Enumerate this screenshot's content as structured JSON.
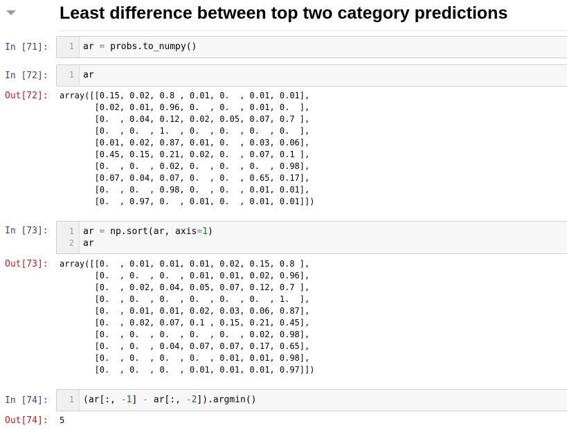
{
  "heading": "Least difference between top two category predictions",
  "cells": [
    {
      "in_prompt": "In [71]:",
      "lines": [
        {
          "no": "1",
          "text": "ar = probs.to_numpy()"
        }
      ]
    },
    {
      "in_prompt": "In [72]:",
      "lines": [
        {
          "no": "1",
          "text": "ar"
        }
      ],
      "out_prompt": "Out[72]:",
      "output": [
        "array([[0.15, 0.02, 0.8 , 0.01, 0.  , 0.01, 0.01],",
        "       [0.02, 0.01, 0.96, 0.  , 0.  , 0.01, 0.  ],",
        "       [0.  , 0.04, 0.12, 0.02, 0.05, 0.07, 0.7 ],",
        "       [0.  , 0.  , 1.  , 0.  , 0.  , 0.  , 0.  ],",
        "       [0.01, 0.02, 0.87, 0.01, 0.  , 0.03, 0.06],",
        "       [0.45, 0.15, 0.21, 0.02, 0.  , 0.07, 0.1 ],",
        "       [0.  , 0.  , 0.02, 0.  , 0.  , 0.  , 0.98],",
        "       [0.07, 0.04, 0.07, 0.  , 0.  , 0.65, 0.17],",
        "       [0.  , 0.  , 0.98, 0.  , 0.  , 0.01, 0.01],",
        "       [0.  , 0.97, 0.  , 0.01, 0.  , 0.01, 0.01]])"
      ]
    },
    {
      "in_prompt": "In [73]:",
      "lines": [
        {
          "no": "1",
          "text": "ar = np.sort(ar, axis=1)"
        },
        {
          "no": "2",
          "text": "ar"
        }
      ],
      "out_prompt": "Out[73]:",
      "output": [
        "array([[0.  , 0.01, 0.01, 0.01, 0.02, 0.15, 0.8 ],",
        "       [0.  , 0.  , 0.  , 0.01, 0.01, 0.02, 0.96],",
        "       [0.  , 0.02, 0.04, 0.05, 0.07, 0.12, 0.7 ],",
        "       [0.  , 0.  , 0.  , 0.  , 0.  , 0.  , 1.  ],",
        "       [0.  , 0.01, 0.01, 0.02, 0.03, 0.06, 0.87],",
        "       [0.  , 0.02, 0.07, 0.1 , 0.15, 0.21, 0.45],",
        "       [0.  , 0.  , 0.  , 0.  , 0.  , 0.02, 0.98],",
        "       [0.  , 0.  , 0.04, 0.07, 0.07, 0.17, 0.65],",
        "       [0.  , 0.  , 0.  , 0.  , 0.01, 0.01, 0.98],",
        "       [0.  , 0.  , 0.  , 0.01, 0.01, 0.01, 0.97]])"
      ]
    },
    {
      "in_prompt": "In [74]:",
      "lines": [
        {
          "no": "1",
          "text": "(ar[:, -1] - ar[:, -2]).argmin()"
        }
      ],
      "out_prompt": "Out[74]:",
      "output": [
        "5"
      ]
    }
  ],
  "colors": {
    "in_prompt": "#303f9f",
    "out_prompt": "#b71c1c",
    "number": "#008000",
    "operator": "#7a7a7a",
    "input_bg": "#f7f7f7"
  },
  "icons": {
    "collapse": "collapse-caret-icon"
  }
}
